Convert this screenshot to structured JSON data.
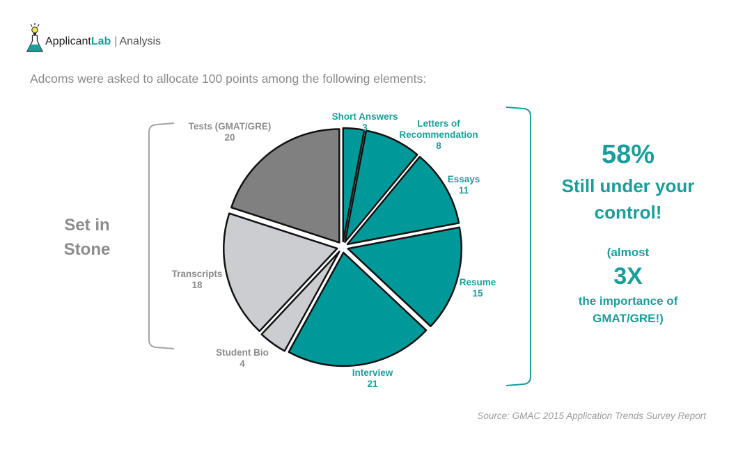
{
  "brand": {
    "name_prefix": "Applicant",
    "name_accent": "Lab",
    "separator": "|",
    "section": "Analysis",
    "icon": "flask-lightbulb-icon",
    "accent_color": "#1a9e9b"
  },
  "intro_text": "Adcoms were asked to allocate 100 points among the following elements:",
  "left_bracket_label": {
    "line1": "Set in",
    "line2": "Stone"
  },
  "callout": {
    "percent": "58%",
    "line1": "Still under your",
    "line2": "control!",
    "almost": "(almost",
    "multiplier": "3X",
    "importance1": "the importance of",
    "importance2": "GMAT/GRE!)"
  },
  "source": "Source: GMAC 2015 Application Trends Survey Report",
  "chart_data": {
    "type": "pie",
    "title": "",
    "slices": [
      {
        "label": [
          "Short Answers"
        ],
        "value": 3,
        "color": "#009999",
        "label_color": "#1a9e9b"
      },
      {
        "label": [
          "Letters of",
          "Recommendation"
        ],
        "value": 8,
        "color": "#009999",
        "label_color": "#1a9e9b"
      },
      {
        "label": [
          "Essays"
        ],
        "value": 11,
        "color": "#009999",
        "label_color": "#1a9e9b"
      },
      {
        "label": [
          "Resume"
        ],
        "value": 15,
        "color": "#009999",
        "label_color": "#1a9e9b"
      },
      {
        "label": [
          "Interview"
        ],
        "value": 21,
        "color": "#009999",
        "label_color": "#1a9e9b"
      },
      {
        "label": [
          "Student Bio"
        ],
        "value": 4,
        "color": "#cbcdd0",
        "label_color": "#8c8c8c"
      },
      {
        "label": [
          "Transcripts"
        ],
        "value": 18,
        "color": "#cbcdd0",
        "label_color": "#8c8c8c"
      },
      {
        "label": [
          "Tests (GMAT/GRE)"
        ],
        "value": 20,
        "color": "#808080",
        "label_color": "#8c8c8c"
      }
    ],
    "legend": "none"
  }
}
